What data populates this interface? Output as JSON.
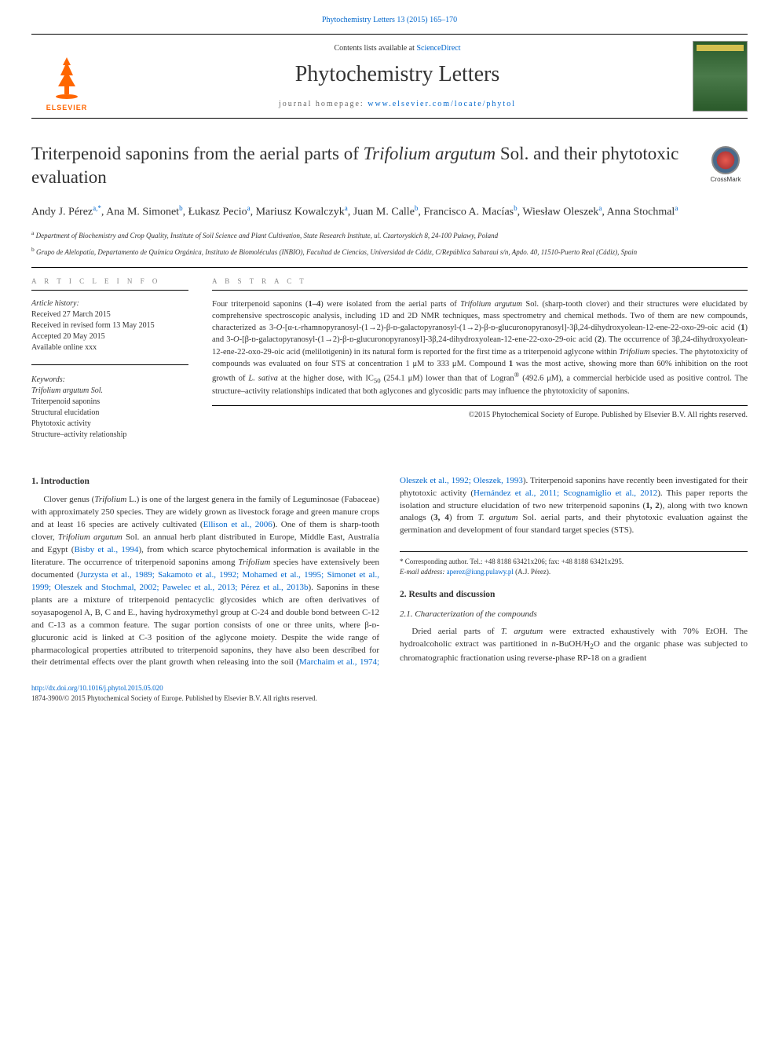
{
  "top_citation": "Phytochemistry Letters 13 (2015) 165–170",
  "masthead": {
    "contents_pre": "Contents lists available at ",
    "contents_link": "ScienceDirect",
    "journal": "Phytochemistry Letters",
    "homepage_pre": "journal homepage: ",
    "homepage_link": "www.elsevier.com/locate/phytol",
    "publisher_label": "ELSEVIER"
  },
  "crossmark_label": "CrossMark",
  "title_html": "Triterpenoid saponins from the aerial parts of <em>Trifolium argutum</em> Sol. and their phytotoxic evaluation",
  "authors_html": "Andy J. Pérez<sup>a,*</sup>, Ana M. Simonet<sup>b</sup>, Łukasz Pecio<sup>a</sup>, Mariusz Kowalczyk<sup>a</sup>, Juan M. Calle<sup>b</sup>, Francisco A. Macías<sup>b</sup>, Wiesław Oleszek<sup>a</sup>, Anna Stochmal<sup>a</sup>",
  "affiliations": {
    "a": "Department of Biochemistry and Crop Quality, Institute of Soil Science and Plant Cultivation, State Research Institute, ul. Czartoryskich 8, 24-100 Puławy, Poland",
    "b": "Grupo de Alelopatía, Departamento de Química Orgánica, Instituto de Biomoléculas (INBIO), Facultad de Ciencias, Universidad de Cádiz, C/República Saharaui s/n, Apdo. 40, 11510-Puerto Real (Cádiz), Spain"
  },
  "info": {
    "heading": "A R T I C L E   I N F O",
    "history_label": "Article history:",
    "history": [
      "Received 27 March 2015",
      "Received in revised form 13 May 2015",
      "Accepted 20 May 2015",
      "Available online xxx"
    ],
    "keywords_label": "Keywords:",
    "keywords": [
      "Trifolium argutum Sol.",
      "Triterpenoid saponins",
      "Structural elucidation",
      "Phytotoxic activity",
      "Structure–activity relationship"
    ]
  },
  "abstract": {
    "heading": "A B S T R A C T",
    "text_html": "Four triterpenoid saponins (<b>1–4</b>) were isolated from the aerial parts of <em>Trifolium argutum</em> Sol. (sharp-tooth clover) and their structures were elucidated by comprehensive spectroscopic analysis, including 1D and 2D NMR techniques, mass spectrometry and chemical methods. Two of them are new compounds, characterized as 3-<em>O</em>-[α-ʟ-rhamnopyranosyl-(1→2)-β-ᴅ-galactopyranosyl-(1→2)-β-ᴅ-glucuronopyranosyl]-3β,24-dihydroxyolean-12-ene-22-oxo-29-oic acid (<b>1</b>) and 3-<em>O</em>-[β-ᴅ-galactopyranosyl-(1→2)-β-ᴅ-glucuronopyranosyl]-3β,24-dihydroxyolean-12-ene-22-oxo-29-oic acid (<b>2</b>). The occurrence of 3β,24-dihydroxyolean-12-ene-22-oxo-29-oic acid (melilotigenin) in its natural form is reported for the first time as a triterpenoid aglycone within <em>Trifolium</em> species. The phytotoxicity of compounds was evaluated on four STS at concentration 1 μM to 333 μM. Compound <b>1</b> was the most active, showing more than 60% inhibition on the root growth of <em>L. sativa</em> at the higher dose, with IC<sub>50</sub> (254.1 μM) lower than that of Logran<sup>®</sup> (492.6 μM), a commercial herbicide used as positive control. The structure–activity relationships indicated that both aglycones and glycosidic parts may influence the phytotoxicity of saponins.",
    "copyright": "©2015 Phytochemical Society of Europe. Published by Elsevier B.V. All rights reserved."
  },
  "sections": {
    "s1_heading": "1. Introduction",
    "s1_p1_html": "Clover genus (<em>Trifolium</em> L.) is one of the largest genera in the family of Leguminosae (Fabaceae) with approximately 250 species. They are widely grown as livestock forage and green manure crops and at least 16 species are actively cultivated (<span class='ref'>Ellison et al., 2006</span>). One of them is sharp-tooth clover, <em>Trifolium argutum</em> Sol. an annual herb plant distributed in Europe, Middle East, Australia and Egypt (<span class='ref'>Bisby et al., 1994</span>), from which scarce phytochemical information is available in the literature. The occurrence of triterpenoid saponins among <em>Trifolium</em> species have extensively been documented (<span class='ref'>Jurzysta et al., 1989; Sakamoto et al., 1992; Mohamed et al., 1995; Simonet et al., 1999; Oleszek and Stochmal, 2002; Pawelec et al., 2013; Pérez et al., 2013b</span>). Saponins in these plants are a mixture of triterpenoid pentacyclic glycosides which are often derivatives of soyasapogenol A, B, C and E., having hydroxymethyl group at C-24 and double bond between C-12 and C-13 as a common feature. The sugar portion consists of one or three units, where β-ᴅ-glucuronic acid is linked at C-3 position of the aglycone moiety. Despite the wide range of pharmacological properties attributed to triterpenoid saponins, they have also been described for their detrimental effects over the plant growth when releasing into the soil (<span class='ref'>Marchaim et al., 1974; Oleszek et al., 1992; Oleszek, 1993</span>). Triterpenoid saponins have recently been investigated for their phytotoxic activity (<span class='ref'>Hernández et al., 2011; Scognamiglio et al., 2012</span>). This paper reports the isolation and structure elucidation of two new triterpenoid saponins (<b>1, 2</b>), along with two known analogs (<b>3, 4</b>) from <em>T. argutum</em> Sol. aerial parts, and their phytotoxic evaluation against the germination and development of four standard target species (STS).",
    "s2_heading": "2. Results and discussion",
    "s21_heading": "2.1. Characterization of the compounds",
    "s21_p1_html": "Dried aerial parts of <em>T. argutum</em> were extracted exhaustively with 70% EtOH. The hydroalcoholic extract was partitioned in <em>n</em>-BuOH/H<sub>2</sub>O and the organic phase was subjected to chromatographic fractionation using reverse-phase RP-18 on a gradient"
  },
  "correspondence": {
    "line1": "* Corresponding author. Tel.: +48 8188 63421x206; fax: +48 8188 63421x295.",
    "email_label": "E-mail address: ",
    "email": "aperez@iung.pulawy.pl",
    "email_suffix": " (A.J. Pérez)."
  },
  "footer": {
    "doi": "http://dx.doi.org/10.1016/j.phytol.2015.05.020",
    "issn_line": "1874-3900/© 2015 Phytochemical Society of Europe. Published by Elsevier B.V. All rights reserved."
  },
  "colors": {
    "link": "#0066cc",
    "elsevier_orange": "#ff6600",
    "text": "#333333",
    "muted": "#888888"
  }
}
